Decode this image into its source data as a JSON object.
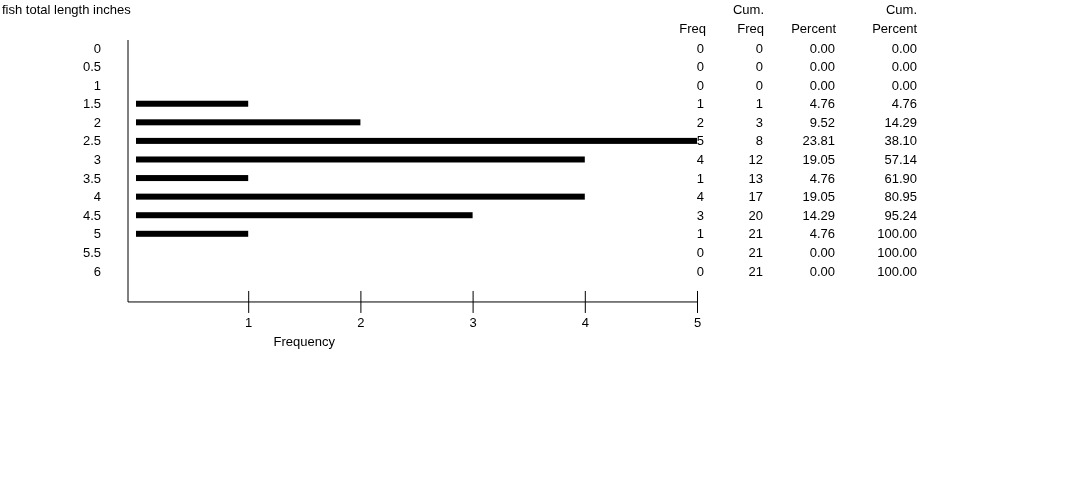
{
  "chart_data": {
    "type": "bar",
    "orientation": "horizontal",
    "title": "fish total length inches",
    "xlabel": "Frequency",
    "categories": [
      "0",
      "0.5",
      "1",
      "1.5",
      "2",
      "2.5",
      "3",
      "3.5",
      "4",
      "4.5",
      "5",
      "5.5",
      "6"
    ],
    "values": [
      0,
      0,
      0,
      1,
      2,
      5,
      4,
      1,
      4,
      3,
      1,
      0,
      0
    ],
    "color": "#000000",
    "xlim": [
      0,
      5
    ],
    "xticks": [
      1,
      2,
      3,
      4,
      5
    ],
    "data_labels": true,
    "annotations": [
      "Freq",
      "Cum. Freq",
      "Percent",
      "Cum. Percent",
      "0",
      "0.00",
      "0.00",
      "0",
      "0.00",
      "0.00",
      "0",
      "0.00",
      "0.00",
      "1",
      "4.76",
      "4.76",
      "3",
      "9.52",
      "14.29",
      "8",
      "23.81",
      "38.10",
      "12",
      "19.05",
      "57.14",
      "13",
      "4.76",
      "61.90",
      "17",
      "19.05",
      "80.95",
      "20",
      "14.29",
      "95.24",
      "21",
      "4.76",
      "100.00",
      "21",
      "0.00",
      "100.00",
      "21",
      "0.00",
      "100.00"
    ]
  }
}
